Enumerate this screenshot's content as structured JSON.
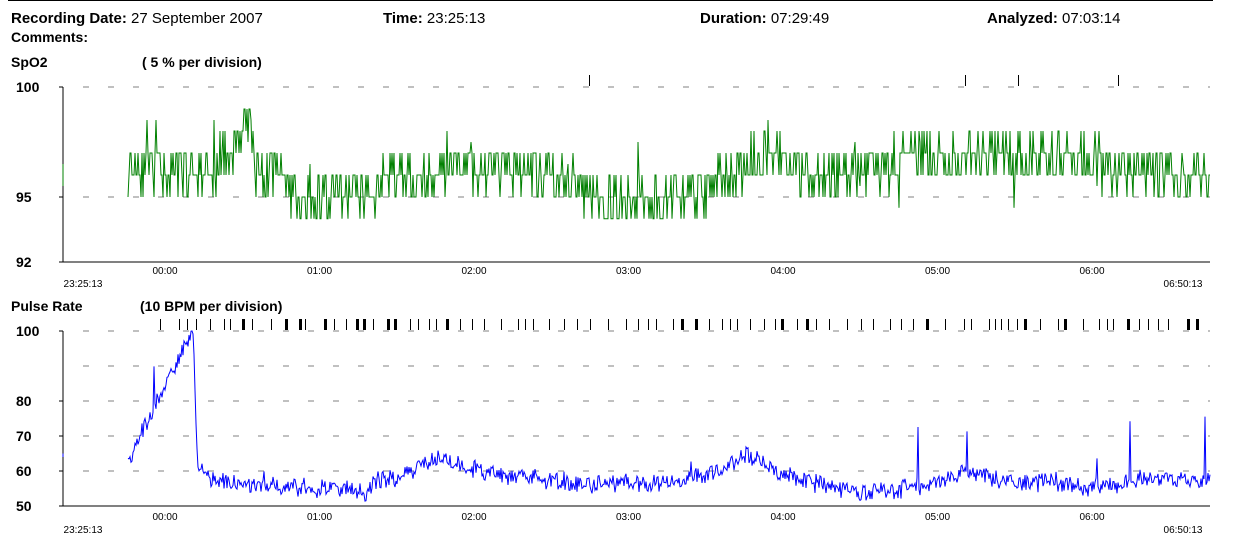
{
  "header": {
    "recording_date_label": "Recording Date:",
    "recording_date": "27 September 2007",
    "time_label": "Time:",
    "time": "23:25:13",
    "duration_label": "Duration:",
    "duration": "07:29:49",
    "analyzed_label": "Analyzed:",
    "analyzed": "07:03:14",
    "comments_label": "Comments:"
  },
  "colors": {
    "spo2": "#008000",
    "pulse": "#0000ff",
    "grid": "#808080",
    "axis": "#000000"
  },
  "chart_data": [
    {
      "type": "line",
      "title": "SpO2",
      "subtitle": "( 5 %  per division)",
      "ylim": [
        92,
        100
      ],
      "yticks": [
        "100",
        "95",
        "92"
      ],
      "ytick_values": [
        100,
        95,
        92
      ],
      "x_start_label": "23:25:13",
      "x_end_label": "06:50:13",
      "xticks": [
        "00:00",
        "01:00",
        "02:00",
        "03:00",
        "04:00",
        "05:00",
        "06:00"
      ],
      "grid": "dashed horizontal",
      "series": [
        {
          "points": [
            [
              0.0,
              96.5
            ],
            [
              0.55,
              96.0
            ],
            [
              0.8,
              98.3
            ],
            [
              0.83,
              96.0
            ],
            [
              1.0,
              96.0
            ],
            [
              1.08,
              95.0
            ],
            [
              1.2,
              94.5
            ],
            [
              1.35,
              95.5
            ],
            [
              1.55,
              95.0
            ],
            [
              1.75,
              96.2
            ],
            [
              1.95,
              95.5
            ],
            [
              2.1,
              96.8
            ],
            [
              2.25,
              96.0
            ],
            [
              2.4,
              96.5
            ],
            [
              2.6,
              96.2
            ],
            [
              2.8,
              95.8
            ],
            [
              3.0,
              95.2
            ],
            [
              3.2,
              94.8
            ],
            [
              3.4,
              95.0
            ],
            [
              3.55,
              95.0
            ],
            [
              3.7,
              95.2
            ],
            [
              3.85,
              95.8
            ],
            [
              4.0,
              96.5
            ],
            [
              4.15,
              96.8
            ],
            [
              4.3,
              96.5
            ],
            [
              4.45,
              96.0
            ],
            [
              4.6,
              96.2
            ],
            [
              4.8,
              96.5
            ],
            [
              5.0,
              96.5
            ],
            [
              5.2,
              96.8
            ],
            [
              5.4,
              96.5
            ],
            [
              5.6,
              97.0
            ],
            [
              5.8,
              96.8
            ],
            [
              6.0,
              96.5
            ],
            [
              6.2,
              96.8
            ],
            [
              6.4,
              96.2
            ],
            [
              6.6,
              96.5
            ],
            [
              6.8,
              96.0
            ],
            [
              7.0,
              96.2
            ],
            [
              7.2,
              96.5
            ],
            [
              7.4,
              96.8
            ]
          ]
        }
      ]
    },
    {
      "type": "line",
      "title": "Pulse Rate",
      "subtitle": "(10 BPM per division)",
      "ylim": [
        50,
        100
      ],
      "yticks": [
        "100",
        "80",
        "70",
        "60",
        "50"
      ],
      "ytick_values": [
        100,
        80,
        70,
        60,
        50
      ],
      "x_start_label": "23:25:13",
      "x_end_label": "06:50:13",
      "xticks": [
        "00:00",
        "01:00",
        "02:00",
        "03:00",
        "04:00",
        "05:00",
        "06:00"
      ],
      "grid": "dashed horizontal",
      "series": [
        {
          "points": [
            [
              0.0,
              65.0
            ],
            [
              0.01,
              64.0
            ],
            [
              0.42,
              100.0
            ],
            [
              0.45,
              61.0
            ],
            [
              0.55,
              58.0
            ],
            [
              0.8,
              56.0
            ],
            [
              1.0,
              56.0
            ],
            [
              1.2,
              55.0
            ],
            [
              1.4,
              55.0
            ],
            [
              1.55,
              54.0
            ],
            [
              1.6,
              57.0
            ],
            [
              1.75,
              58.0
            ],
            [
              1.9,
              62.0
            ],
            [
              2.05,
              64.0
            ],
            [
              2.2,
              61.0
            ],
            [
              2.4,
              59.0
            ],
            [
              2.6,
              58.0
            ],
            [
              2.8,
              57.0
            ],
            [
              3.0,
              56.0
            ],
            [
              3.2,
              57.0
            ],
            [
              3.4,
              56.0
            ],
            [
              3.55,
              57.0
            ],
            [
              3.75,
              59.0
            ],
            [
              3.9,
              62.0
            ],
            [
              4.0,
              65.0
            ],
            [
              4.1,
              63.0
            ],
            [
              4.2,
              60.0
            ],
            [
              4.4,
              57.0
            ],
            [
              4.6,
              55.0
            ],
            [
              4.8,
              54.0
            ],
            [
              5.0,
              55.0
            ],
            [
              5.2,
              56.0
            ],
            [
              5.4,
              60.0
            ],
            [
              5.6,
              58.0
            ],
            [
              5.8,
              56.0
            ],
            [
              6.0,
              57.0
            ],
            [
              6.2,
              55.0
            ],
            [
              6.4,
              56.0
            ],
            [
              6.6,
              58.0
            ],
            [
              6.8,
              57.0
            ],
            [
              7.0,
              58.0
            ],
            [
              7.2,
              58.0
            ],
            [
              7.4,
              57.0
            ]
          ]
        }
      ]
    }
  ]
}
